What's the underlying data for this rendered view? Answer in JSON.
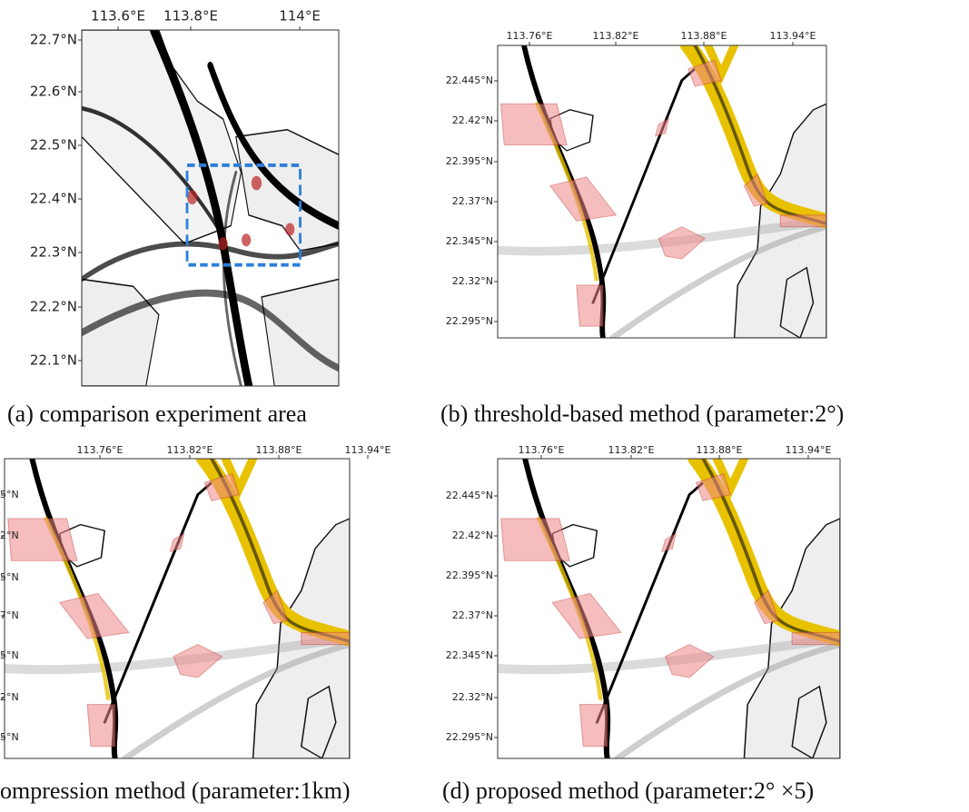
{
  "panels": [
    {
      "caption": "(a) comparison experiment area",
      "lon_ticks": [
        "113.6°E",
        "113.8°E",
        "114°E"
      ],
      "lat_ticks": [
        "22.7°N",
        "22.6°N",
        "22.5°N",
        "22.4°N",
        "22.3°N",
        "22.2°N",
        "22.1°N"
      ]
    },
    {
      "caption": "(b) threshold-based method (parameter:2°)",
      "lon_ticks": [
        "113.76°E",
        "113.82°E",
        "113.88°E",
        "113.94°E"
      ],
      "lat_ticks": [
        "22.445°N",
        "22.42°N",
        "22.395°N",
        "22.37°N",
        "22.345°N",
        "22.32°N",
        "22.295°N"
      ]
    },
    {
      "caption": "ompression method (parameter:1km)",
      "lon_ticks": [
        "113.76°E",
        "113.82°E",
        "113.88°E",
        "113.94°E"
      ],
      "lat_ticks": [
        "5°N",
        "2°N",
        "5°N",
        "7°N",
        "5°N",
        "2°N",
        "5°N"
      ]
    },
    {
      "caption": "(d) proposed method (parameter:2° ×5)",
      "lon_ticks": [
        "113.76°E",
        "113.82°E",
        "113.88°E",
        "113.94°E"
      ],
      "lat_ticks": [
        "22.445°N",
        "22.42°N",
        "22.395°N",
        "22.37°N",
        "22.345°N",
        "22.32°N",
        "22.295°N"
      ]
    }
  ]
}
